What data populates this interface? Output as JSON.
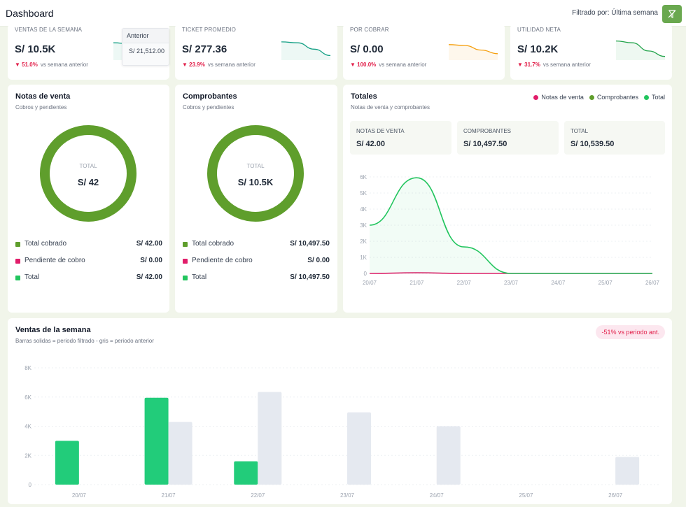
{
  "header": {
    "title": "Dashboard",
    "filter_label": "Filtrado por: Última semana",
    "filter_icon": "filter-off-icon"
  },
  "kpis": [
    {
      "label": "VENTAS DE LA SEMANA",
      "value": "S/ 10.5K",
      "change_pct": "▼ 51.0%",
      "change_text": "vs semana anterior",
      "spark_color": "#14a085",
      "trend": [
        0.8,
        0.75,
        0.3,
        0.1
      ]
    },
    {
      "label": "TICKET PROMEDIO",
      "value": "S/ 277.36",
      "change_pct": "▼ 23.9%",
      "change_text": "vs semana anterior",
      "spark_color": "#14a085",
      "trend": [
        0.85,
        0.8,
        0.45,
        0.1
      ]
    },
    {
      "label": "POR COBRAR",
      "value": "S/ 0.00",
      "change_pct": "▼ 100.0%",
      "change_text": "vs semana anterior",
      "spark_color": "#f59e0b",
      "trend": [
        0.7,
        0.65,
        0.4,
        0.2
      ]
    },
    {
      "label": "UTILIDAD NETA",
      "value": "S/ 10.2K",
      "change_pct": "▼ 31.7%",
      "change_text": "vs semana anterior",
      "spark_color": "#22a34a",
      "trend": [
        0.9,
        0.8,
        0.35,
        0.05
      ]
    }
  ],
  "tooltip": {
    "title": "Anterior",
    "value": "S/ 21,512.00"
  },
  "notas": {
    "title": "Notas de venta",
    "subtitle": "Cobros y pendientes",
    "center_label": "TOTAL",
    "center_value": "S/ 42",
    "legend": [
      {
        "label": "Total cobrado",
        "amount": "S/ 42.00",
        "color": "#5f9e2c"
      },
      {
        "label": "Pendiente de cobro",
        "amount": "S/ 0.00",
        "color": "#e11d6a"
      },
      {
        "label": "Total",
        "amount": "S/ 42.00",
        "color": "#22c55e"
      }
    ]
  },
  "comprobantes": {
    "title": "Comprobantes",
    "subtitle": "Cobros y pendientes",
    "center_label": "TOTAL",
    "center_value": "S/ 10.5K",
    "legend": [
      {
        "label": "Total cobrado",
        "amount": "S/ 10,497.50",
        "color": "#5f9e2c"
      },
      {
        "label": "Pendiente de cobro",
        "amount": "S/ 0.00",
        "color": "#e11d6a"
      },
      {
        "label": "Total",
        "amount": "S/ 10,497.50",
        "color": "#22c55e"
      }
    ]
  },
  "totales": {
    "title": "Totales",
    "subtitle": "Notas de venta y comprobantes",
    "legend": [
      {
        "label": "Notas de venta",
        "color": "#e11d6a"
      },
      {
        "label": "Comprobantes",
        "color": "#5f9e2c"
      },
      {
        "label": "Total",
        "color": "#22c55e"
      }
    ],
    "stats": [
      {
        "label": "NOTAS DE VENTA",
        "value": "S/ 42.00"
      },
      {
        "label": "COMPROBANTES",
        "value": "S/ 10,497.50"
      },
      {
        "label": "TOTAL",
        "value": "S/ 10,539.50"
      }
    ]
  },
  "ventas": {
    "title": "Ventas de la semana",
    "subtitle": "Barras solidas = periodo filtrado - gris = periodo anterior",
    "badge": "-51% vs periodo ant."
  },
  "chart_data": [
    {
      "type": "line",
      "x": [
        "20/07",
        "21/07",
        "22/07",
        "23/07",
        "24/07",
        "25/07",
        "26/07"
      ],
      "yticks": [
        "0",
        "1K",
        "2K",
        "3K",
        "4K",
        "5K",
        "6K"
      ],
      "ylim": [
        0,
        6000
      ],
      "series": [
        {
          "name": "Notas de venta",
          "color": "#e11d6a",
          "values": [
            0,
            42,
            0,
            0,
            0,
            0,
            0
          ]
        },
        {
          "name": "Total",
          "color": "#22c55e",
          "values": [
            3000,
            5950,
            1650,
            0,
            0,
            0,
            0
          ]
        }
      ]
    },
    {
      "type": "bar",
      "categories": [
        "20/07",
        "21/07",
        "22/07",
        "23/07",
        "24/07",
        "25/07",
        "26/07"
      ],
      "yticks": [
        "0",
        "2K",
        "4K",
        "6K",
        "8K"
      ],
      "ylim": [
        0,
        8000
      ],
      "series": [
        {
          "color": "#22cc7a",
          "values": [
            3000,
            5950,
            1600,
            0,
            0,
            0,
            0
          ]
        },
        {
          "color": "#e5e9f0",
          "values": [
            0,
            4300,
            6350,
            4950,
            4000,
            0,
            1900
          ]
        }
      ]
    }
  ]
}
